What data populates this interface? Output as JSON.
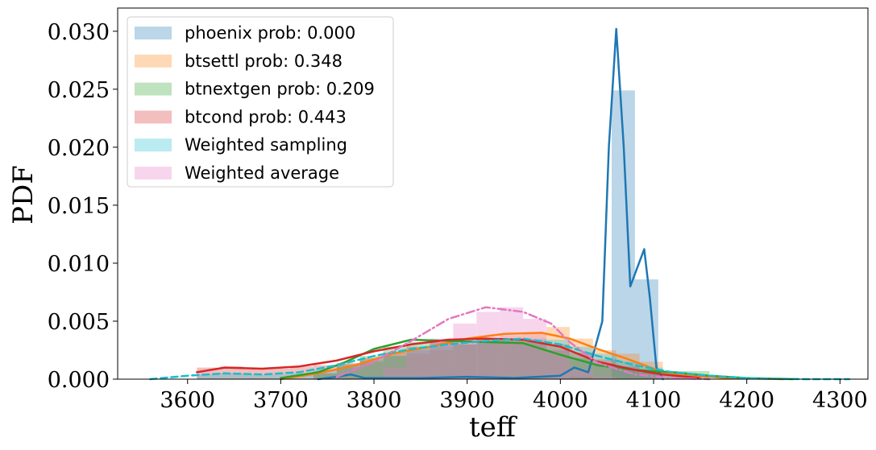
{
  "chart_data": {
    "type": "histogram_kde",
    "xlabel": "teff",
    "ylabel": "PDF",
    "xlim": [
      3525,
      4330
    ],
    "ylim": [
      0,
      0.032
    ],
    "xticks": [
      3600,
      3700,
      3800,
      3900,
      4000,
      4100,
      4200,
      4300
    ],
    "yticks": [
      0.0,
      0.005,
      0.01,
      0.015,
      0.02,
      0.025,
      0.03
    ],
    "ytick_labels": [
      "0.000",
      "0.005",
      "0.010",
      "0.015",
      "0.020",
      "0.025",
      "0.030"
    ],
    "legend_position": "top-left",
    "series": [
      {
        "name": "phoenix prob: 0.000",
        "color": "#1f77b4",
        "bin_width": 25,
        "hist": [
          [
            3760,
            0.0001
          ],
          [
            3785,
            0.0001
          ],
          [
            3900,
            0.0001
          ],
          [
            3960,
            0.0001
          ],
          [
            4010,
            0.0002
          ],
          [
            4055,
            0.0249
          ],
          [
            4080,
            0.0086
          ]
        ],
        "kde": [
          [
            3740,
            0
          ],
          [
            3760,
            0.0002
          ],
          [
            3775,
            0.0004
          ],
          [
            3790,
            0.0001
          ],
          [
            3850,
            0.0001
          ],
          [
            3900,
            0.0002
          ],
          [
            3950,
            0.0001
          ],
          [
            4000,
            0.0003
          ],
          [
            4015,
            0.001
          ],
          [
            4030,
            0.0006
          ],
          [
            4045,
            0.005
          ],
          [
            4052,
            0.02
          ],
          [
            4060,
            0.0302
          ],
          [
            4068,
            0.02
          ],
          [
            4075,
            0.008
          ],
          [
            4082,
            0.0095
          ],
          [
            4090,
            0.0112
          ],
          [
            4096,
            0.007
          ],
          [
            4103,
            0.001
          ],
          [
            4110,
            0
          ]
        ]
      },
      {
        "name": "btsettl prob: 0.348",
        "color": "#ff7f0e",
        "bin_width": 25,
        "hist": [
          [
            3735,
            0.0005
          ],
          [
            3760,
            0.001
          ],
          [
            3785,
            0.0015
          ],
          [
            3810,
            0.002
          ],
          [
            3835,
            0.0022
          ],
          [
            3860,
            0.0025
          ],
          [
            3885,
            0.003
          ],
          [
            3910,
            0.0035
          ],
          [
            3935,
            0.0038
          ],
          [
            3960,
            0.004
          ],
          [
            3985,
            0.0045
          ],
          [
            4010,
            0.0035
          ],
          [
            4035,
            0.0025
          ],
          [
            4060,
            0.0022
          ],
          [
            4085,
            0.0015
          ],
          [
            4110,
            0.0005
          ]
        ],
        "kde": [
          [
            3700,
            0
          ],
          [
            3740,
            0.0005
          ],
          [
            3780,
            0.0012
          ],
          [
            3820,
            0.0022
          ],
          [
            3860,
            0.0028
          ],
          [
            3900,
            0.0035
          ],
          [
            3940,
            0.0039
          ],
          [
            3980,
            0.004
          ],
          [
            4010,
            0.0035
          ],
          [
            4040,
            0.0026
          ],
          [
            4070,
            0.0018
          ],
          [
            4090,
            0.0012
          ],
          [
            4110,
            0.0006
          ],
          [
            4140,
            0.0003
          ],
          [
            4180,
            0.0001
          ],
          [
            4240,
            0
          ]
        ]
      },
      {
        "name": "btnextgen prob: 0.209",
        "color": "#2ca02c",
        "bin_width": 25,
        "hist": [
          [
            3735,
            0.0005
          ],
          [
            3760,
            0.0013
          ],
          [
            3785,
            0.002
          ],
          [
            3810,
            0.0028
          ],
          [
            3835,
            0.0032
          ],
          [
            3860,
            0.0032
          ],
          [
            3885,
            0.003
          ],
          [
            3910,
            0.0032
          ],
          [
            3935,
            0.0035
          ],
          [
            3960,
            0.0033
          ],
          [
            3985,
            0.0025
          ],
          [
            4010,
            0.0018
          ],
          [
            4035,
            0.0012
          ],
          [
            4060,
            0.0008
          ],
          [
            4085,
            0.0006
          ],
          [
            4110,
            0.0007
          ],
          [
            4135,
            0.0007
          ]
        ],
        "kde": [
          [
            3700,
            0.0001
          ],
          [
            3740,
            0.0006
          ],
          [
            3770,
            0.0015
          ],
          [
            3800,
            0.0026
          ],
          [
            3840,
            0.0034
          ],
          [
            3880,
            0.0033
          ],
          [
            3920,
            0.0032
          ],
          [
            3960,
            0.0031
          ],
          [
            4000,
            0.0021
          ],
          [
            4040,
            0.0012
          ],
          [
            4080,
            0.0008
          ],
          [
            4120,
            0.0006
          ],
          [
            4160,
            0.0003
          ],
          [
            4200,
            0.0001
          ],
          [
            4250,
            0
          ]
        ]
      },
      {
        "name": "btcond prob: 0.443",
        "color": "#d62728",
        "bin_width": 25,
        "hist": [
          [
            3610,
            0.001
          ],
          [
            3635,
            0.0011
          ],
          [
            3660,
            0.0009
          ],
          [
            3685,
            0.0009
          ],
          [
            3710,
            0.0011
          ],
          [
            3735,
            0.0012
          ],
          [
            3760,
            0.0014
          ],
          [
            3785,
            0.0018
          ],
          [
            3810,
            0.0023
          ],
          [
            3835,
            0.0028
          ],
          [
            3860,
            0.0032
          ],
          [
            3885,
            0.0033
          ],
          [
            3910,
            0.0035
          ],
          [
            3935,
            0.0033
          ],
          [
            3960,
            0.0032
          ],
          [
            3985,
            0.003
          ],
          [
            4010,
            0.0023
          ],
          [
            4035,
            0.0017
          ],
          [
            4060,
            0.0011
          ],
          [
            4085,
            0.0006
          ]
        ],
        "kde": [
          [
            3610,
            0.0006
          ],
          [
            3640,
            0.001
          ],
          [
            3680,
            0.0009
          ],
          [
            3720,
            0.0011
          ],
          [
            3760,
            0.0016
          ],
          [
            3800,
            0.0024
          ],
          [
            3840,
            0.003
          ],
          [
            3880,
            0.0034
          ],
          [
            3920,
            0.0035
          ],
          [
            3960,
            0.0034
          ],
          [
            4000,
            0.0028
          ],
          [
            4040,
            0.0015
          ],
          [
            4080,
            0.0008
          ],
          [
            4110,
            0.0004
          ],
          [
            4150,
            0.0001
          ]
        ]
      },
      {
        "name": "Weighted sampling",
        "color": "#17becf",
        "bin_width": 25,
        "hist": [
          [
            3610,
            0.0004
          ],
          [
            3635,
            0.0005
          ],
          [
            3660,
            0.0004
          ],
          [
            3685,
            0.0004
          ],
          [
            3710,
            0.0005
          ],
          [
            3735,
            0.0008
          ],
          [
            3760,
            0.0012
          ],
          [
            3785,
            0.0016
          ],
          [
            3810,
            0.002
          ],
          [
            3835,
            0.0025
          ],
          [
            3860,
            0.0028
          ],
          [
            3885,
            0.003
          ],
          [
            3910,
            0.0032
          ],
          [
            3935,
            0.0035
          ],
          [
            3960,
            0.0035
          ],
          [
            3985,
            0.0034
          ],
          [
            4010,
            0.0028
          ],
          [
            4035,
            0.0022
          ],
          [
            4060,
            0.0015
          ],
          [
            4085,
            0.001
          ],
          [
            4110,
            0.0006
          ],
          [
            4135,
            0.0003
          ]
        ],
        "kde": [
          [
            3560,
            0
          ],
          [
            3600,
            0.0003
          ],
          [
            3640,
            0.0005
          ],
          [
            3680,
            0.0004
          ],
          [
            3720,
            0.0006
          ],
          [
            3760,
            0.0012
          ],
          [
            3800,
            0.002
          ],
          [
            3840,
            0.0026
          ],
          [
            3880,
            0.003
          ],
          [
            3920,
            0.0033
          ],
          [
            3960,
            0.0035
          ],
          [
            4000,
            0.003
          ],
          [
            4040,
            0.002
          ],
          [
            4080,
            0.0012
          ],
          [
            4120,
            0.0006
          ],
          [
            4160,
            0.0003
          ],
          [
            4200,
            0.0001
          ],
          [
            4260,
            0
          ],
          [
            4310,
            0
          ]
        ]
      },
      {
        "name": "Weighted average",
        "color": "#e377c2",
        "bin_width": 25,
        "hist": [
          [
            3810,
            0.001
          ],
          [
            3835,
            0.0025
          ],
          [
            3860,
            0.0035
          ],
          [
            3885,
            0.0048
          ],
          [
            3910,
            0.0058
          ],
          [
            3935,
            0.0062
          ],
          [
            3960,
            0.0052
          ],
          [
            3985,
            0.0025
          ],
          [
            4010,
            0.0008
          ],
          [
            4035,
            0.0002
          ]
        ],
        "kde": [
          [
            3760,
            0.0002
          ],
          [
            3800,
            0.0015
          ],
          [
            3840,
            0.0033
          ],
          [
            3880,
            0.0052
          ],
          [
            3920,
            0.0062
          ],
          [
            3960,
            0.0058
          ],
          [
            3990,
            0.0048
          ],
          [
            4010,
            0.0032
          ],
          [
            4040,
            0.0014
          ],
          [
            4080,
            0.0004
          ],
          [
            4120,
            0.0001
          ],
          [
            4160,
            0
          ]
        ]
      }
    ]
  }
}
